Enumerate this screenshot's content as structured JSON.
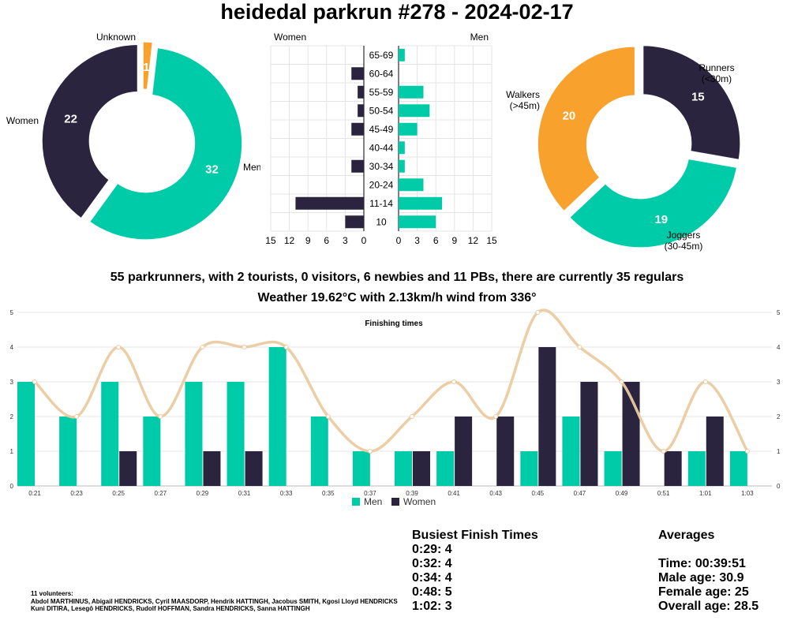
{
  "title": "heidedal parkrun #278 - 2024-02-17",
  "summary": "55 parkrunners, with 2 tourists, 0 visitors, 6 newbies and 11 PBs, there are currently 35 regulars",
  "weather": "Weather 19.62°C with 2.13km/h wind from 336°",
  "colors": {
    "men": "#00cba8",
    "women": "#2b243e",
    "unknown": "#f9a12d",
    "trend": "#eacba1"
  },
  "chart_data": [
    {
      "type": "pie",
      "variant": "donut",
      "slices": [
        {
          "label": "Unknown",
          "value": 1,
          "color": "#f9a12d"
        },
        {
          "label": "Men",
          "value": 32,
          "color": "#00cba8"
        },
        {
          "label": "Women",
          "value": 22,
          "color": "#2b243e"
        }
      ]
    },
    {
      "type": "bar",
      "orientation": "horizontal",
      "left_title": "Women",
      "right_title": "Men",
      "categories": [
        "65-69",
        "60-64",
        "55-59",
        "50-54",
        "45-49",
        "40-44",
        "30-34",
        "20-24",
        "11-14",
        "10"
      ],
      "series": [
        {
          "name": "Women",
          "values": [
            0,
            2,
            1,
            1,
            2,
            0,
            2,
            0,
            11,
            3
          ]
        },
        {
          "name": "Men",
          "values": [
            1,
            0,
            4,
            5,
            3,
            1,
            1,
            4,
            7,
            6
          ]
        }
      ],
      "xticks": [
        0,
        3,
        6,
        9,
        12,
        15
      ],
      "xlim": [
        0,
        15
      ]
    },
    {
      "type": "pie",
      "variant": "donut",
      "slices": [
        {
          "label": "Runners (<30m)",
          "label_lines": [
            "Runners",
            "(<30m)"
          ],
          "value": 15,
          "color": "#2b243e"
        },
        {
          "label": "Joggers (30-45m)",
          "label_lines": [
            "Joggers",
            "(30-45m)"
          ],
          "value": 19,
          "color": "#00cba8"
        },
        {
          "label": "Walkers (>45m)",
          "label_lines": [
            "Walkers",
            "(>45m)"
          ],
          "value": 20,
          "color": "#f9a12d"
        }
      ]
    },
    {
      "type": "bar",
      "title": "Finishing times",
      "categories": [
        "0:21",
        "0:23",
        "0:25",
        "0:27",
        "0:29",
        "0:31",
        "0:33",
        "0:35",
        "0:37",
        "0:39",
        "0:41",
        "0:43",
        "0:45",
        "0:47",
        "0:49",
        "0:51",
        "1:01",
        "1:03"
      ],
      "series": [
        {
          "name": "Men",
          "values": [
            3,
            2,
            3,
            2,
            3,
            3,
            4,
            2,
            1,
            1,
            1,
            0,
            1,
            2,
            1,
            0,
            1,
            1
          ]
        },
        {
          "name": "Women",
          "values": [
            0,
            0,
            1,
            0,
            1,
            1,
            0,
            0,
            0,
            1,
            2,
            2,
            4,
            3,
            3,
            1,
            2,
            0
          ]
        }
      ],
      "trend": [
        3,
        2,
        4,
        2,
        4,
        4,
        4,
        2,
        1,
        2,
        3,
        2,
        5,
        4,
        3,
        1,
        3,
        1
      ],
      "ylim": [
        0,
        5
      ],
      "yticks": [
        0,
        1,
        2,
        3,
        4,
        5
      ],
      "grid": true,
      "legend": "bottom"
    }
  ],
  "busiest": {
    "title": "Busiest Finish Times",
    "items": [
      "0:29: 4",
      "0:32: 4",
      "0:34: 4",
      "0:48: 5",
      "1:02: 3"
    ]
  },
  "averages": {
    "title": "Averages",
    "items": [
      "Time: 00:39:51",
      "Male age: 30.9",
      "Female age: 25",
      "Overall age: 28.5"
    ]
  },
  "volunteers": {
    "heading": "11 volunteers:",
    "lines": [
      "Abdol MARTHINUS, Abigail HENDRICKS, Cyril MAASDORP, Hendrik HATTINGH, Jacobus SMITH, Kgosi Lloyd HENDRICKS",
      "Kuni DITIRA, Lesegô HENDRICKS, Rudolf HOFFMAN, Sandra HENDRICKS, Sanna HATTINGH"
    ]
  }
}
